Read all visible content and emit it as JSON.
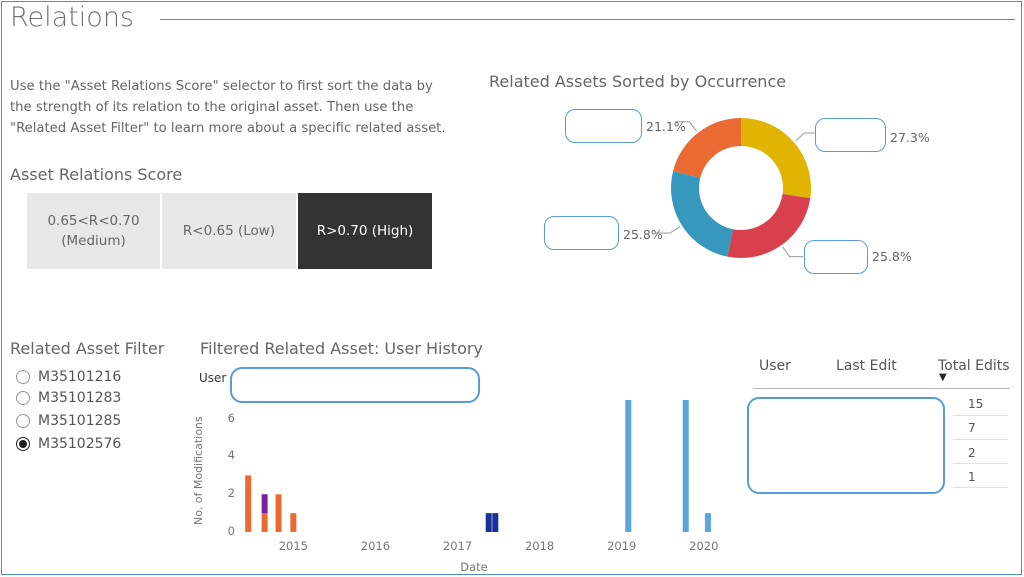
{
  "page": {
    "title": "Relations"
  },
  "description": "Use the \"Asset Relations Score\" selector to first sort the data by the strength of its relation to the original asset. Then use the \"Related Asset Filter\" to learn more about a specific related asset.",
  "score_selector": {
    "label": "Asset Relations Score",
    "options": [
      {
        "line1": "0.65<R<0.70",
        "line2": "(Medium)",
        "selected": false
      },
      {
        "line1": "R<0.65 (Low)",
        "line2": "",
        "selected": false
      },
      {
        "line1": "R>0.70 (High)",
        "line2": "",
        "selected": true
      }
    ]
  },
  "asset_filter": {
    "label": "Related Asset Filter",
    "items": [
      {
        "label": "M35101216",
        "checked": false
      },
      {
        "label": "M35101283",
        "checked": false
      },
      {
        "label": "M35101285",
        "checked": false
      },
      {
        "label": "M35102576",
        "checked": true
      }
    ]
  },
  "donut": {
    "title": "Related Assets Sorted by Occurrence",
    "slices": [
      {
        "value": 27.3,
        "label": "27.3%",
        "color": "#e0b400"
      },
      {
        "value": 25.8,
        "label": "25.8%",
        "color": "#d9404e"
      },
      {
        "value": 25.8,
        "label": "25.8%",
        "color": "#3698bd"
      },
      {
        "value": 21.1,
        "label": "21.1%",
        "color": "#ea6a34"
      }
    ]
  },
  "history": {
    "title": "Filtered Related Asset: User History",
    "user_label": "User",
    "ylabel": "No. of Modifications",
    "xlabel": "Date",
    "y_ticks": [
      "0",
      "2",
      "4",
      "6"
    ],
    "x_ticks": [
      "2015",
      "2016",
      "2017",
      "2018",
      "2019",
      "2020"
    ]
  },
  "chart_data": {
    "type": "bar",
    "title": "Filtered Related Asset: User History",
    "xlabel": "Date",
    "ylabel": "No. of Modifications",
    "ylim": [
      0,
      7
    ],
    "xlim": [
      2014.35,
      2020.1
    ],
    "bars": [
      {
        "x": 2014.45,
        "segments": [
          {
            "value": 3,
            "color": "#ea6a34"
          }
        ]
      },
      {
        "x": 2014.65,
        "segments": [
          {
            "value": 1,
            "color": "#ea6a34"
          },
          {
            "value": 1,
            "color": "#7b1fa2"
          }
        ]
      },
      {
        "x": 2014.82,
        "segments": [
          {
            "value": 2,
            "color": "#ea6a34"
          }
        ]
      },
      {
        "x": 2015.0,
        "segments": [
          {
            "value": 1,
            "color": "#ea6a34"
          }
        ]
      },
      {
        "x": 2017.38,
        "segments": [
          {
            "value": 1,
            "color": "#1a2f9e"
          }
        ]
      },
      {
        "x": 2017.46,
        "segments": [
          {
            "value": 1,
            "color": "#1a2f9e"
          }
        ]
      },
      {
        "x": 2019.08,
        "segments": [
          {
            "value": 7,
            "color": "#5aa6dc"
          }
        ]
      },
      {
        "x": 2019.78,
        "segments": [
          {
            "value": 7,
            "color": "#5aa6dc"
          }
        ]
      },
      {
        "x": 2020.05,
        "segments": [
          {
            "value": 1,
            "color": "#5aa6dc"
          }
        ]
      }
    ]
  },
  "edits_table": {
    "columns": [
      "User",
      "Last Edit",
      "Total Edits"
    ],
    "sort_indicator": "▼",
    "total_edits": [
      "15",
      "7",
      "2",
      "1"
    ]
  }
}
